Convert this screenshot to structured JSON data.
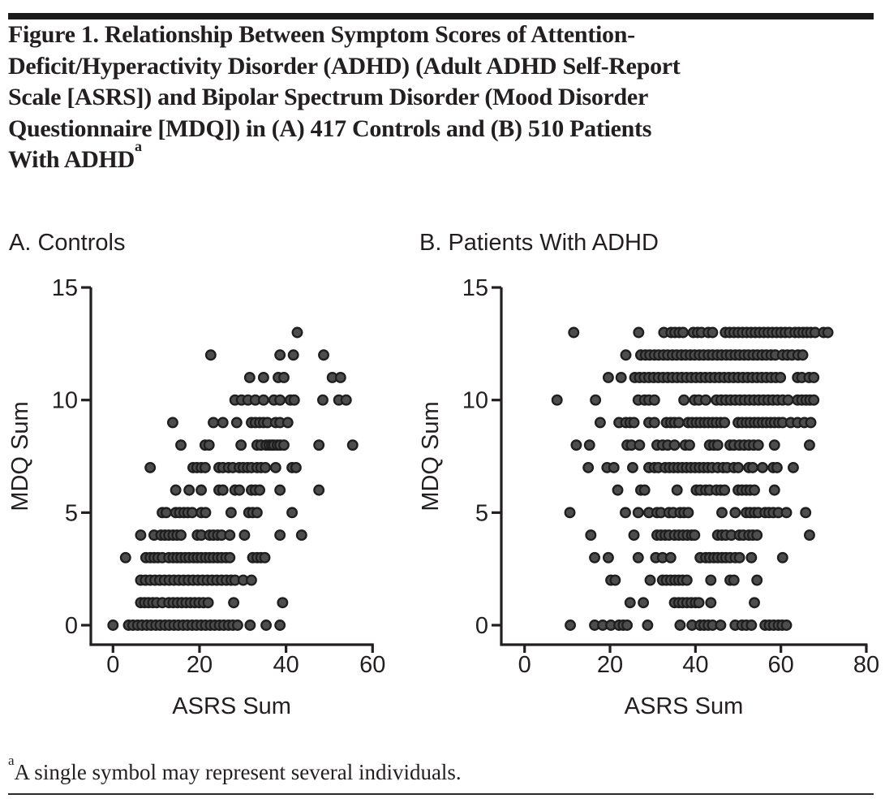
{
  "figure": {
    "title": "Figure 1. Relationship Between Symptom Scores of Attention-\nDeficit/Hyperactivity Disorder (ADHD) (Adult ADHD Self-Report\nScale [ASRS]) and Bipolar Spectrum Disorder (Mood Disorder\nQuestionnaire [MDQ]) in (A) 417 Controls and (B) 510 Patients\nWith ADHD",
    "title_superscript": "a",
    "footnote_superscript": "a",
    "footnote": "A single symbol may represent several individuals.",
    "colors": {
      "text": "#231f20",
      "axis": "#231f20",
      "dot_fill": "#4d4d4d",
      "dot_stroke": "#1e1e1e",
      "rule": "#1b1b1b"
    }
  },
  "chart_data": [
    {
      "type": "scatter",
      "panel": "A",
      "label": "A. Controls",
      "xlabel": "ASRS Sum",
      "ylabel": "MDQ Sum",
      "xlim": [
        0,
        60
      ],
      "xticks": [
        0,
        20,
        40,
        60
      ],
      "ylim": [
        0,
        15
      ],
      "yticks": [
        0,
        5,
        10,
        15
      ],
      "grid": false,
      "legend": null,
      "marker": "circle",
      "rows": [
        {
          "mdq": 13,
          "asrs": [
            42.6
          ]
        },
        {
          "mdq": 12,
          "asrs": [
            22.6,
            38.6,
            41.7,
            48.7
          ]
        },
        {
          "mdq": 11,
          "asrs": [
            31.6,
            34.8,
            38.2,
            39.5,
            50.7,
            52.6
          ]
        },
        {
          "mdq": 10,
          "asrs": [
            28.2,
            29.7,
            31.2,
            32.9,
            34.8,
            37.2,
            38.6,
            41,
            41.9,
            48.5,
            52.2,
            53.9
          ]
        },
        {
          "mdq": 9,
          "asrs": [
            13.8,
            23.2,
            25.4,
            28.6,
            32,
            32.9,
            33.9,
            34.8,
            35.7,
            37.6,
            38.6,
            40.4
          ]
        },
        {
          "mdq": 8,
          "asrs": [
            15.7,
            21.3,
            22.2,
            29.6,
            33.3,
            34.2,
            35.4,
            36.1,
            36.7,
            37.2,
            38,
            38.6,
            39.5,
            47.6,
            55.4
          ]
        },
        {
          "mdq": 7,
          "asrs": [
            8.6,
            18.5,
            19.4,
            20.4,
            21.3,
            24.5,
            25.4,
            26.7,
            27.7,
            29.2,
            30.1,
            31.1,
            32,
            33.3,
            34.2,
            35.2,
            37.6,
            41.4,
            42.3
          ]
        },
        {
          "mdq": 6,
          "asrs": [
            14.5,
            17.6,
            20.4,
            24.5,
            25.4,
            28.2,
            29.2,
            32,
            32.9,
            33.9,
            38.6,
            47.6
          ]
        },
        {
          "mdq": 5,
          "asrs": [
            11.4,
            12.3,
            14.5,
            15.4,
            16.4,
            17.3,
            18.3,
            20.4,
            21.4,
            27.3,
            31.4,
            32.3,
            33.3,
            41.4
          ]
        },
        {
          "mdq": 4,
          "asrs": [
            6.4,
            9.5,
            11.1,
            12,
            12.9,
            13.9,
            14.8,
            15.7,
            19.5,
            20.4,
            22.3,
            23.2,
            24.2,
            25.1,
            27,
            30.4,
            38.6,
            43.6
          ]
        },
        {
          "mdq": 3,
          "asrs": [
            2.9,
            7.6,
            8.6,
            9.5,
            10.4,
            11.4,
            12.9,
            13.9,
            14.8,
            15.7,
            16.7,
            17.6,
            18.6,
            19.5,
            20.4,
            21.4,
            22.3,
            23.2,
            24.2,
            25.1,
            26.1,
            27,
            32.3,
            33.3,
            34.2,
            35.1
          ]
        },
        {
          "mdq": 2,
          "asrs": [
            6.4,
            7.5,
            8.6,
            9.7,
            10.8,
            11.9,
            13,
            14.1,
            15.2,
            16.3,
            17.4,
            18.5,
            19.6,
            20.7,
            21.8,
            22.9,
            24,
            25.1,
            26.2,
            27.3,
            28.2,
            30.1,
            32
          ]
        },
        {
          "mdq": 1,
          "asrs": [
            6.4,
            7.3,
            8.2,
            9.2,
            10.1,
            11.4,
            12.9,
            13.9,
            14.9,
            15.9,
            16.9,
            17.9,
            18.9,
            19.9,
            20.9,
            22,
            27.9,
            39.2
          ]
        },
        {
          "mdq": 0,
          "asrs": [
            0,
            3.6,
            4.6,
            5.7,
            6.7,
            7.8,
            8.8,
            9.9,
            10.9,
            12,
            13,
            14.1,
            15.1,
            16.2,
            17.2,
            18.3,
            19.3,
            20.4,
            21.4,
            22.5,
            23.5,
            24.6,
            25.6,
            26.7,
            27.7,
            28.8,
            31.7,
            35.4,
            38.6
          ]
        }
      ]
    },
    {
      "type": "scatter",
      "panel": "B",
      "label": "B. Patients With ADHD",
      "xlabel": "ASRS Sum",
      "ylabel": "MDQ Sum",
      "xlim": [
        0,
        80
      ],
      "xticks": [
        0,
        20,
        40,
        60,
        80
      ],
      "ylim": [
        0,
        15
      ],
      "yticks": [
        0,
        5,
        10,
        15
      ],
      "grid": false,
      "legend": null,
      "marker": "circle",
      "rows": [
        {
          "mdq": 13,
          "asrs": [
            11.5,
            26.7,
            32.6,
            34.3,
            35.2,
            36.2,
            37.1,
            39.5,
            40.5,
            41.4,
            43,
            44,
            47,
            48,
            49,
            50,
            51,
            52,
            53,
            54,
            55,
            56,
            57,
            58,
            59,
            60,
            61,
            62,
            63.3,
            64.2,
            65.2,
            66.1,
            67,
            68,
            70,
            71
          ]
        },
        {
          "mdq": 12,
          "asrs": [
            23.7,
            27.2,
            28.3,
            29.3,
            30.4,
            31.4,
            32.5,
            33.5,
            34.6,
            35.6,
            36.7,
            37.7,
            38.8,
            39.8,
            40.9,
            41.9,
            43,
            44,
            45.1,
            46.1,
            47.2,
            48.2,
            49.3,
            50.3,
            51.4,
            52.4,
            53.5,
            54.5,
            55.6,
            56.6,
            57.7,
            58.7,
            60.4,
            61.5,
            62.6,
            64,
            65.1
          ]
        },
        {
          "mdq": 11,
          "asrs": [
            19.6,
            22.6,
            25.8,
            26.9,
            28,
            29.1,
            30.2,
            31.3,
            32.4,
            33.5,
            34.6,
            35.7,
            36.8,
            37.9,
            39,
            40.1,
            41.2,
            42.3,
            43.4,
            44.5,
            45.6,
            46.7,
            47.8,
            48.9,
            50,
            51.1,
            52.2,
            53.3,
            54.4,
            55.5,
            56.6,
            57.7,
            58.8,
            59.9,
            63.9,
            64.9,
            66.6,
            67.7
          ]
        },
        {
          "mdq": 10,
          "asrs": [
            7.6,
            16.6,
            26.6,
            28.1,
            29.1,
            30.4,
            37.3,
            39.8,
            40.8,
            42.4,
            44.9,
            46,
            47.1,
            48.2,
            49.3,
            50.4,
            51.5,
            52.6,
            53.7,
            54.8,
            55.9,
            57,
            58.1,
            59.2,
            60.4,
            61.7,
            63.9,
            64.9,
            65.9,
            66.8,
            67.7
          ]
        },
        {
          "mdq": 9,
          "asrs": [
            17.7,
            22.1,
            23.7,
            24.7,
            25.6,
            29.1,
            30.4,
            33.2,
            34.2,
            35.1,
            36.1,
            38.3,
            39.2,
            40.2,
            41.1,
            42.1,
            43,
            44,
            44.9,
            45.9,
            46.8,
            50,
            50.9,
            51.9,
            52.8,
            53.8,
            54.7,
            55.7,
            56.6,
            57.6,
            58.5,
            59.5,
            60.4,
            62.3,
            63.9,
            65.5,
            67
          ]
        },
        {
          "mdq": 8,
          "asrs": [
            12.1,
            15.2,
            24,
            25,
            26.9,
            31,
            32.3,
            33.5,
            35.1,
            37.6,
            38.6,
            43.3,
            44.3,
            45.2,
            48.1,
            49,
            50.3,
            51.4,
            52.5,
            53.6,
            54.7,
            58.5,
            66.7
          ]
        },
        {
          "mdq": 7,
          "asrs": [
            14.9,
            19.3,
            20.9,
            25.3,
            29.1,
            30.4,
            31.3,
            32.9,
            33.9,
            34.9,
            35.9,
            36.9,
            37.9,
            38.9,
            39.9,
            40.9,
            41.9,
            42.9,
            43.9,
            45.2,
            46.5,
            47.4,
            49,
            50,
            52.5,
            53.4,
            55.7,
            58.2,
            59.1,
            62.9
          ]
        },
        {
          "mdq": 6,
          "asrs": [
            21.8,
            27.2,
            28.1,
            35.7,
            40.2,
            41.1,
            42.4,
            43.3,
            44.9,
            45.9,
            46.8,
            50,
            50.9,
            51.9,
            52.8,
            53.8,
            58.5
          ]
        },
        {
          "mdq": 5,
          "asrs": [
            10.6,
            23.6,
            26.6,
            29.1,
            31,
            31.9,
            33.8,
            34.8,
            36.4,
            37.3,
            38.3,
            46.2,
            49.3,
            51.9,
            52.8,
            53.8,
            54.7,
            56.3,
            57.2,
            58.2,
            59.4,
            61.3,
            65.8
          ]
        },
        {
          "mdq": 4,
          "asrs": [
            15.5,
            25.6,
            31,
            31.9,
            32.9,
            33.8,
            35.1,
            36.1,
            37.1,
            38.1,
            39.1,
            39.8,
            45.2,
            46.2,
            47.1,
            48.4,
            50.3,
            51.2,
            52.5,
            53.4,
            54.4,
            66.7
          ]
        },
        {
          "mdq": 3,
          "asrs": [
            16.4,
            19.6,
            26.6,
            30.7,
            32.3,
            34.2,
            41.1,
            42.4,
            43.3,
            44.3,
            45.2,
            46.2,
            47.1,
            48.1,
            49.3,
            50.3,
            53.1,
            60.4
          ]
        },
        {
          "mdq": 2,
          "asrs": [
            20.2,
            21.2,
            29.4,
            32.3,
            33.2,
            34.2,
            35.2,
            36.1,
            37,
            38,
            43.6,
            48.1,
            49,
            54.4
          ]
        },
        {
          "mdq": 1,
          "asrs": [
            24.7,
            27.8,
            35.1,
            36.1,
            37,
            38,
            39,
            40,
            40.8,
            43.6,
            53.8
          ]
        },
        {
          "mdq": 0,
          "asrs": [
            10.7,
            16.4,
            18.3,
            20.2,
            22.1,
            23.1,
            24,
            28.8,
            36.4,
            39.2,
            41.1,
            42,
            43,
            44,
            45.9,
            49.3,
            50.9,
            51.9,
            53.1,
            56.3,
            57.3,
            58.3,
            59.4,
            60.3,
            61.3
          ]
        }
      ]
    }
  ]
}
